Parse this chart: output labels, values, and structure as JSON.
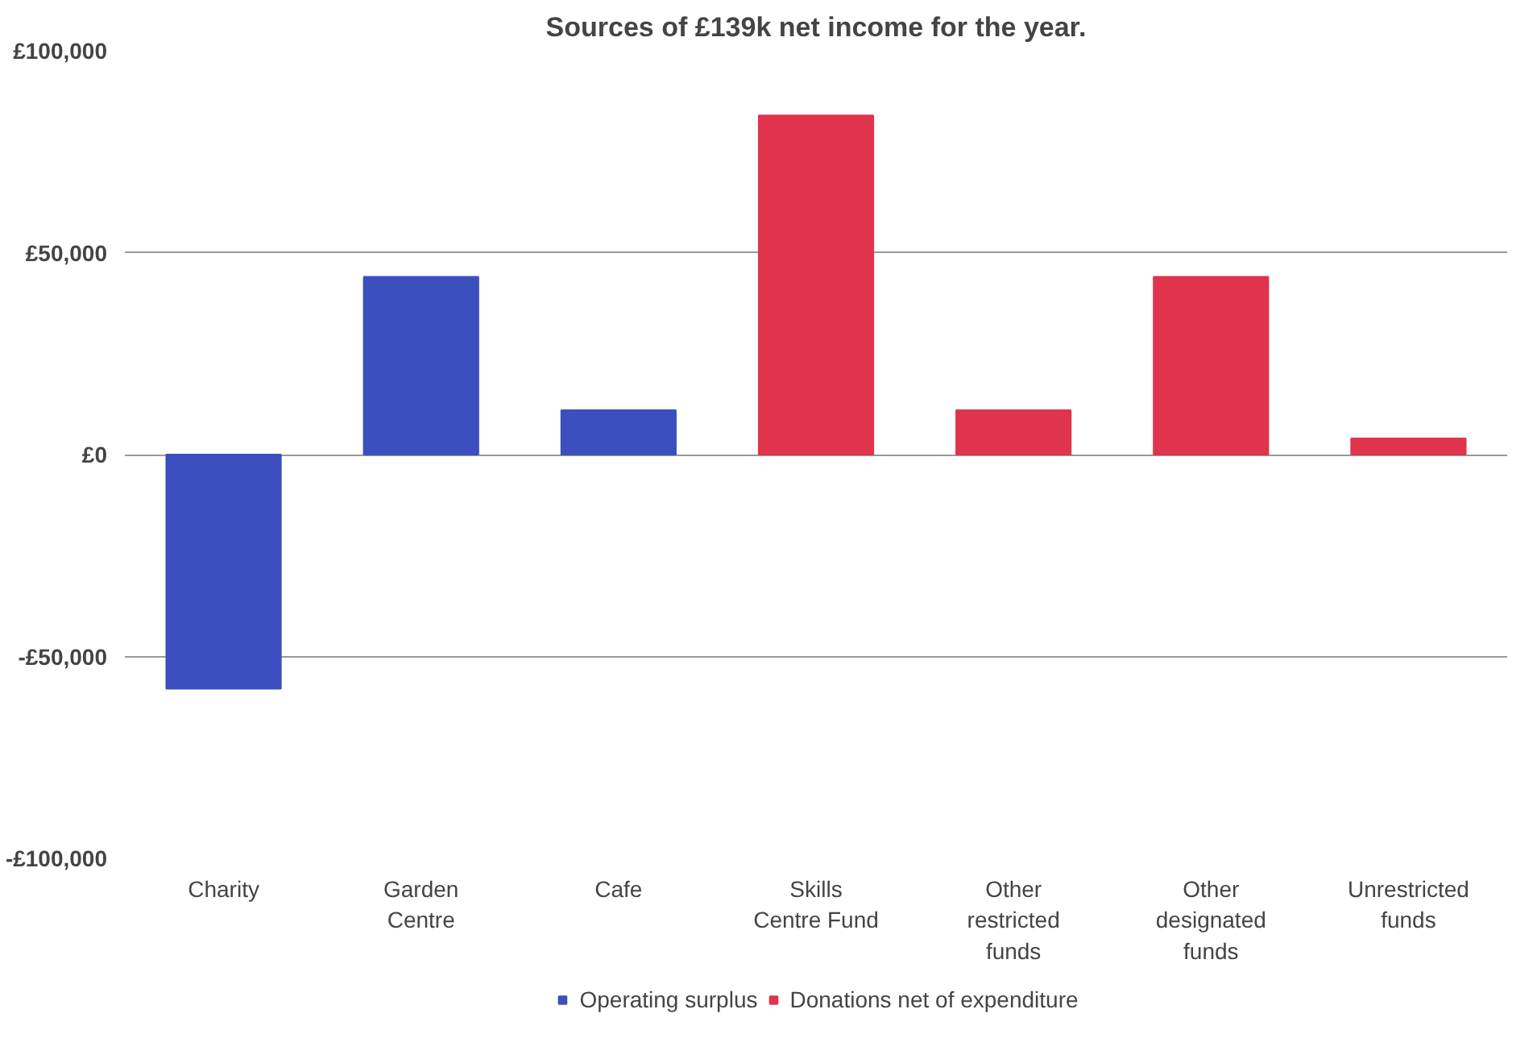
{
  "chart_data": {
    "type": "bar",
    "title": "Sources of £139k net income for the year.",
    "categories": [
      "Charity",
      "Garden Centre",
      "Cafe",
      "Skills Centre Fund",
      "Other restricted funds",
      "Other designated funds",
      "Unrestricted funds"
    ],
    "series": [
      {
        "name": "Operating surplus",
        "color": "#3b4fbf",
        "values": [
          -58000,
          44000,
          11000,
          null,
          null,
          null,
          null
        ]
      },
      {
        "name": "Donations net of expenditure",
        "color": "#e0344c",
        "values": [
          null,
          null,
          null,
          84000,
          11000,
          44000,
          4000
        ]
      }
    ],
    "ylim": [
      -100000,
      100000
    ],
    "yticks": [
      {
        "value": -100000,
        "label": "-£100,000"
      },
      {
        "value": -50000,
        "label": "-£50,000"
      },
      {
        "value": 0,
        "label": "£0"
      },
      {
        "value": 50000,
        "label": "£50,000"
      },
      {
        "value": 100000,
        "label": "£100,000"
      }
    ],
    "grid": "y",
    "legend": "bottom"
  }
}
